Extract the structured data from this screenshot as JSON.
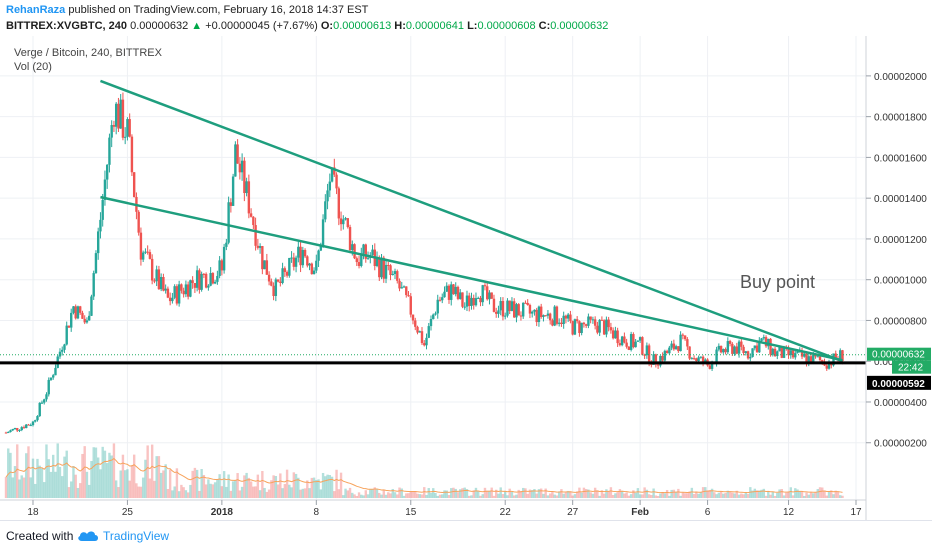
{
  "header": {
    "author": "RehanRaza",
    "published": "published on TradingView.com, February 16, 2018 14:37 EST",
    "symbol": "BITTREX:XVGBTC, 240",
    "last": "0.00000632",
    "change": "+0.00000045 (+7.67%)",
    "o_label": "O:",
    "o": "0.00000613",
    "h_label": "H:",
    "h": "0.00000641",
    "l_label": "L:",
    "l": "0.00000608",
    "c_label": "C:",
    "c": "0.00000632",
    "up_arrow_icon": "triangle-up-icon"
  },
  "legend": {
    "title": "Verge / Bitcoin, 240, BITTREX",
    "volume": "Vol (20)"
  },
  "footer": {
    "created": "Created with",
    "brand": "TradingView",
    "logo_icon": "tradingview-cloud-icon"
  },
  "colors": {
    "up": "#26a69a",
    "down": "#ef5350",
    "trend": "#1e9e7e",
    "support": "#000000",
    "price_tag": "#22ab65",
    "volume_ma": "#f7a35c"
  },
  "chart_data": {
    "type": "candlestick",
    "title": "Verge / Bitcoin, 240, BITTREX",
    "x_tick_labels": [
      "18",
      "25",
      "2018",
      "8",
      "15",
      "22",
      "27",
      "Feb",
      "6",
      "12",
      "17"
    ],
    "y_tick_labels": [
      "0.00002000",
      "0.00001800",
      "0.00001600",
      "0.00001400",
      "0.00001200",
      "0.00001000",
      "0.00000800",
      "0.00000600",
      "0.00000400",
      "0.00000200"
    ],
    "ylim": [
      0.0,
      2.1e-05
    ],
    "xlim": [
      "2017-12-16",
      "2018-02-17"
    ],
    "price_line": {
      "label": "0.00000632",
      "countdown": "22:42",
      "value": 6.32e-06
    },
    "support_line": {
      "label": "0.00000592",
      "value": 5.92e-06
    },
    "annotation": "Buy point",
    "trendlines": [
      {
        "start": [
          "2017-12-23",
          1.975e-05
        ],
        "end": [
          "2018-02-16",
          6e-06
        ]
      },
      {
        "start": [
          "2017-12-23",
          1.405e-05
        ],
        "end": [
          "2018-02-16",
          6.05e-06
        ]
      }
    ],
    "price_path": [
      [
        "2017-12-16",
        2.5e-06
      ],
      [
        "2017-12-18",
        3e-06
      ],
      [
        "2017-12-19",
        4.5e-06
      ],
      [
        "2017-12-20",
        6.5e-06
      ],
      [
        "2017-12-21",
        8.7e-06
      ],
      [
        "2017-12-22",
        7.8e-06
      ],
      [
        "2017-12-23",
        1.3e-05
      ],
      [
        "2017-12-24",
        1.85e-05
      ],
      [
        "2017-12-25",
        1.72e-05
      ],
      [
        "2017-12-26",
        1.15e-05
      ],
      [
        "2017-12-27",
        1.02e-05
      ],
      [
        "2017-12-28",
        9e-06
      ],
      [
        "2017-12-30",
        1e-05
      ],
      [
        "2018-01-01",
        1.05e-05
      ],
      [
        "2018-01-02",
        1.62e-05
      ],
      [
        "2018-01-03",
        1.38e-05
      ],
      [
        "2018-01-04",
        1.1e-05
      ],
      [
        "2018-01-05",
        9.5e-06
      ],
      [
        "2018-01-06",
        1.05e-05
      ],
      [
        "2018-01-07",
        1.15e-05
      ],
      [
        "2018-01-08",
        1.05e-05
      ],
      [
        "2018-01-09",
        1.5e-05
      ],
      [
        "2018-01-10",
        1.3e-05
      ],
      [
        "2018-01-11",
        1.1e-05
      ],
      [
        "2018-01-12",
        1.12e-05
      ],
      [
        "2018-01-13",
        1.05e-05
      ],
      [
        "2018-01-14",
        9.8e-06
      ],
      [
        "2018-01-15",
        8.5e-06
      ],
      [
        "2018-01-16",
        6.8e-06
      ],
      [
        "2018-01-17",
        9e-06
      ],
      [
        "2018-01-18",
        9.5e-06
      ],
      [
        "2018-01-19",
        8.7e-06
      ],
      [
        "2018-01-20",
        9.6e-06
      ],
      [
        "2018-01-21",
        8.7e-06
      ],
      [
        "2018-01-22",
        8.6e-06
      ],
      [
        "2018-01-24",
        8.3e-06
      ],
      [
        "2018-01-26",
        8.2e-06
      ],
      [
        "2018-01-27",
        7.7e-06
      ],
      [
        "2018-01-29",
        7.8e-06
      ],
      [
        "2018-01-31",
        7e-06
      ],
      [
        "2018-02-01",
        6.8e-06
      ],
      [
        "2018-02-02",
        6e-06
      ],
      [
        "2018-02-03",
        6.4e-06
      ],
      [
        "2018-02-04",
        7e-06
      ],
      [
        "2018-02-05",
        6.2e-06
      ],
      [
        "2018-02-06",
        5.8e-06
      ],
      [
        "2018-02-07",
        6.5e-06
      ],
      [
        "2018-02-08",
        6.7e-06
      ],
      [
        "2018-02-09",
        6.4e-06
      ],
      [
        "2018-02-10",
        7e-06
      ],
      [
        "2018-02-11",
        6.4e-06
      ],
      [
        "2018-02-12",
        6.3e-06
      ],
      [
        "2018-02-13",
        6.2e-06
      ],
      [
        "2018-02-14",
        6.05e-06
      ],
      [
        "2018-02-15",
        5.95e-06
      ],
      [
        "2018-02-16",
        6.32e-06
      ]
    ]
  }
}
